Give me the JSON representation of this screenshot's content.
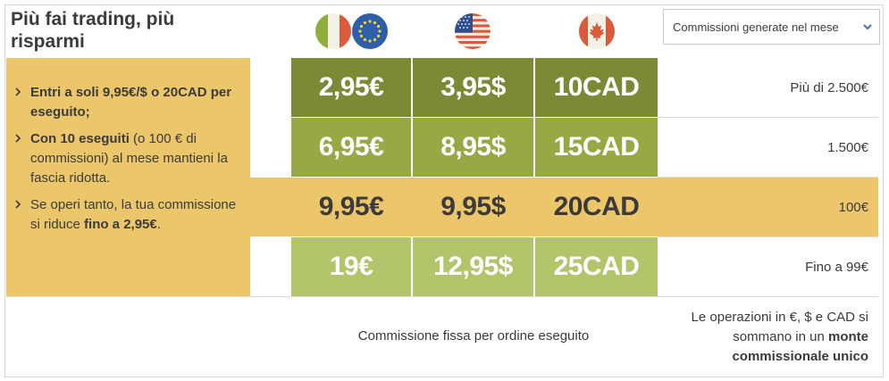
{
  "title": "Più fai trading, più risparmi",
  "flags": {
    "col1": [
      "italy-flag-icon",
      "eu-flag-icon"
    ],
    "col2": "usa-flag-icon",
    "col3": "canada-flag-icon"
  },
  "dropdown": {
    "selected": "Commissioni generate nel mese"
  },
  "bullets": [
    {
      "bold": "Entri a soli 9,95€/$ o 20CAD per eseguito;",
      "text": "",
      "bold2": ""
    },
    {
      "bold": "Con 10 eseguiti",
      "text": " (o 100 € di commissioni) al mese mantieni la fascia ridotta.",
      "bold2": ""
    },
    {
      "bold": "",
      "text": "Se operi tanto, la tua commissione si riduce ",
      "bold2": "fino a 2,95€",
      "tail": "."
    }
  ],
  "rows": [
    {
      "eur": "2,95€",
      "usd": "3,95$",
      "cad": "10CAD",
      "label": "Più di 2.500€"
    },
    {
      "eur": "6,95€",
      "usd": "8,95$",
      "cad": "15CAD",
      "label": "1.500€"
    },
    {
      "eur": "9,95€",
      "usd": "9,95$",
      "cad": "20CAD",
      "label": "100€"
    },
    {
      "eur": "19€",
      "usd": "12,95$",
      "cad": "25CAD",
      "label": "Fino a 99€"
    }
  ],
  "footer": {
    "fixed": "Commissione fissa per ordine eseguito",
    "note_text": "Le operazioni in €, $ e CAD si sommano in un ",
    "note_bold": "monte commissionale unico"
  },
  "colors": {
    "row1": "#7b8a35",
    "row2": "#98a844",
    "row3": "#ecc66a",
    "row4": "#b3c56a",
    "panel": "#ecc66a"
  }
}
